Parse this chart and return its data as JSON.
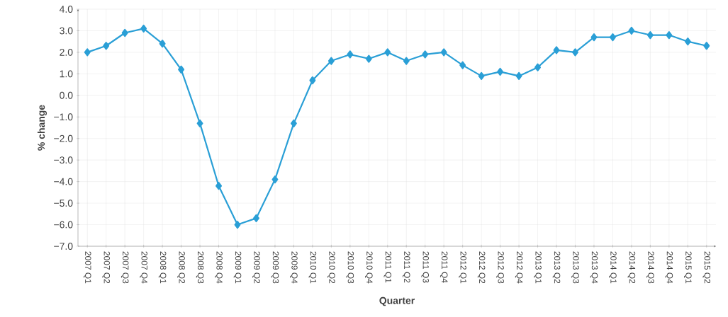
{
  "chart_data": {
    "type": "line",
    "xlabel": "Quarter",
    "ylabel": "% change",
    "categories": [
      "2007 Q1",
      "2007 Q2",
      "2007 Q3",
      "2007 Q4",
      "2008 Q1",
      "2008 Q2",
      "2008 Q3",
      "2008 Q4",
      "2009 Q1",
      "2009 Q2",
      "2009 Q3",
      "2009 Q4",
      "2010 Q1",
      "2010 Q2",
      "2010 Q3",
      "2010 Q4",
      "2011 Q1",
      "2011 Q2",
      "2011 Q3",
      "2011 Q4",
      "2012 Q1",
      "2012 Q2",
      "2012 Q3",
      "2012 Q4",
      "2013 Q1",
      "2013 Q2",
      "2013 Q3",
      "2013 Q4",
      "2014 Q1",
      "2014 Q2",
      "2014 Q3",
      "2014 Q4",
      "2015 Q1",
      "2015 Q2"
    ],
    "series": [
      {
        "color": "#2a9fd6",
        "values": [
          2.0,
          2.3,
          2.9,
          3.1,
          2.4,
          1.2,
          -1.3,
          -4.2,
          -6.0,
          -5.7,
          -3.9,
          -1.3,
          0.7,
          1.6,
          1.9,
          1.7,
          2.0,
          1.6,
          1.9,
          2.0,
          1.4,
          0.9,
          1.1,
          0.9,
          1.3,
          2.1,
          2.0,
          2.7,
          2.7,
          3.0,
          2.8,
          2.8,
          2.5,
          2.3
        ]
      }
    ],
    "ylim": [
      -7,
      4
    ],
    "yticks": [
      {
        "value": 4,
        "label": "4.0"
      },
      {
        "value": 3,
        "label": "3.0"
      },
      {
        "value": 2,
        "label": "2.0"
      },
      {
        "value": 1,
        "label": "1.0"
      },
      {
        "value": 0,
        "label": "0.0"
      },
      {
        "value": -1,
        "label": "−1.0"
      },
      {
        "value": -2,
        "label": "−2.0"
      },
      {
        "value": -3,
        "label": "−3.0"
      },
      {
        "value": -4,
        "label": "−4.0"
      },
      {
        "value": -5,
        "label": "−5.0"
      },
      {
        "value": -6,
        "label": "−6.0"
      },
      {
        "value": -7,
        "label": "−7.0"
      }
    ],
    "grid": true,
    "marker": "diamond",
    "line_style": "solid"
  }
}
